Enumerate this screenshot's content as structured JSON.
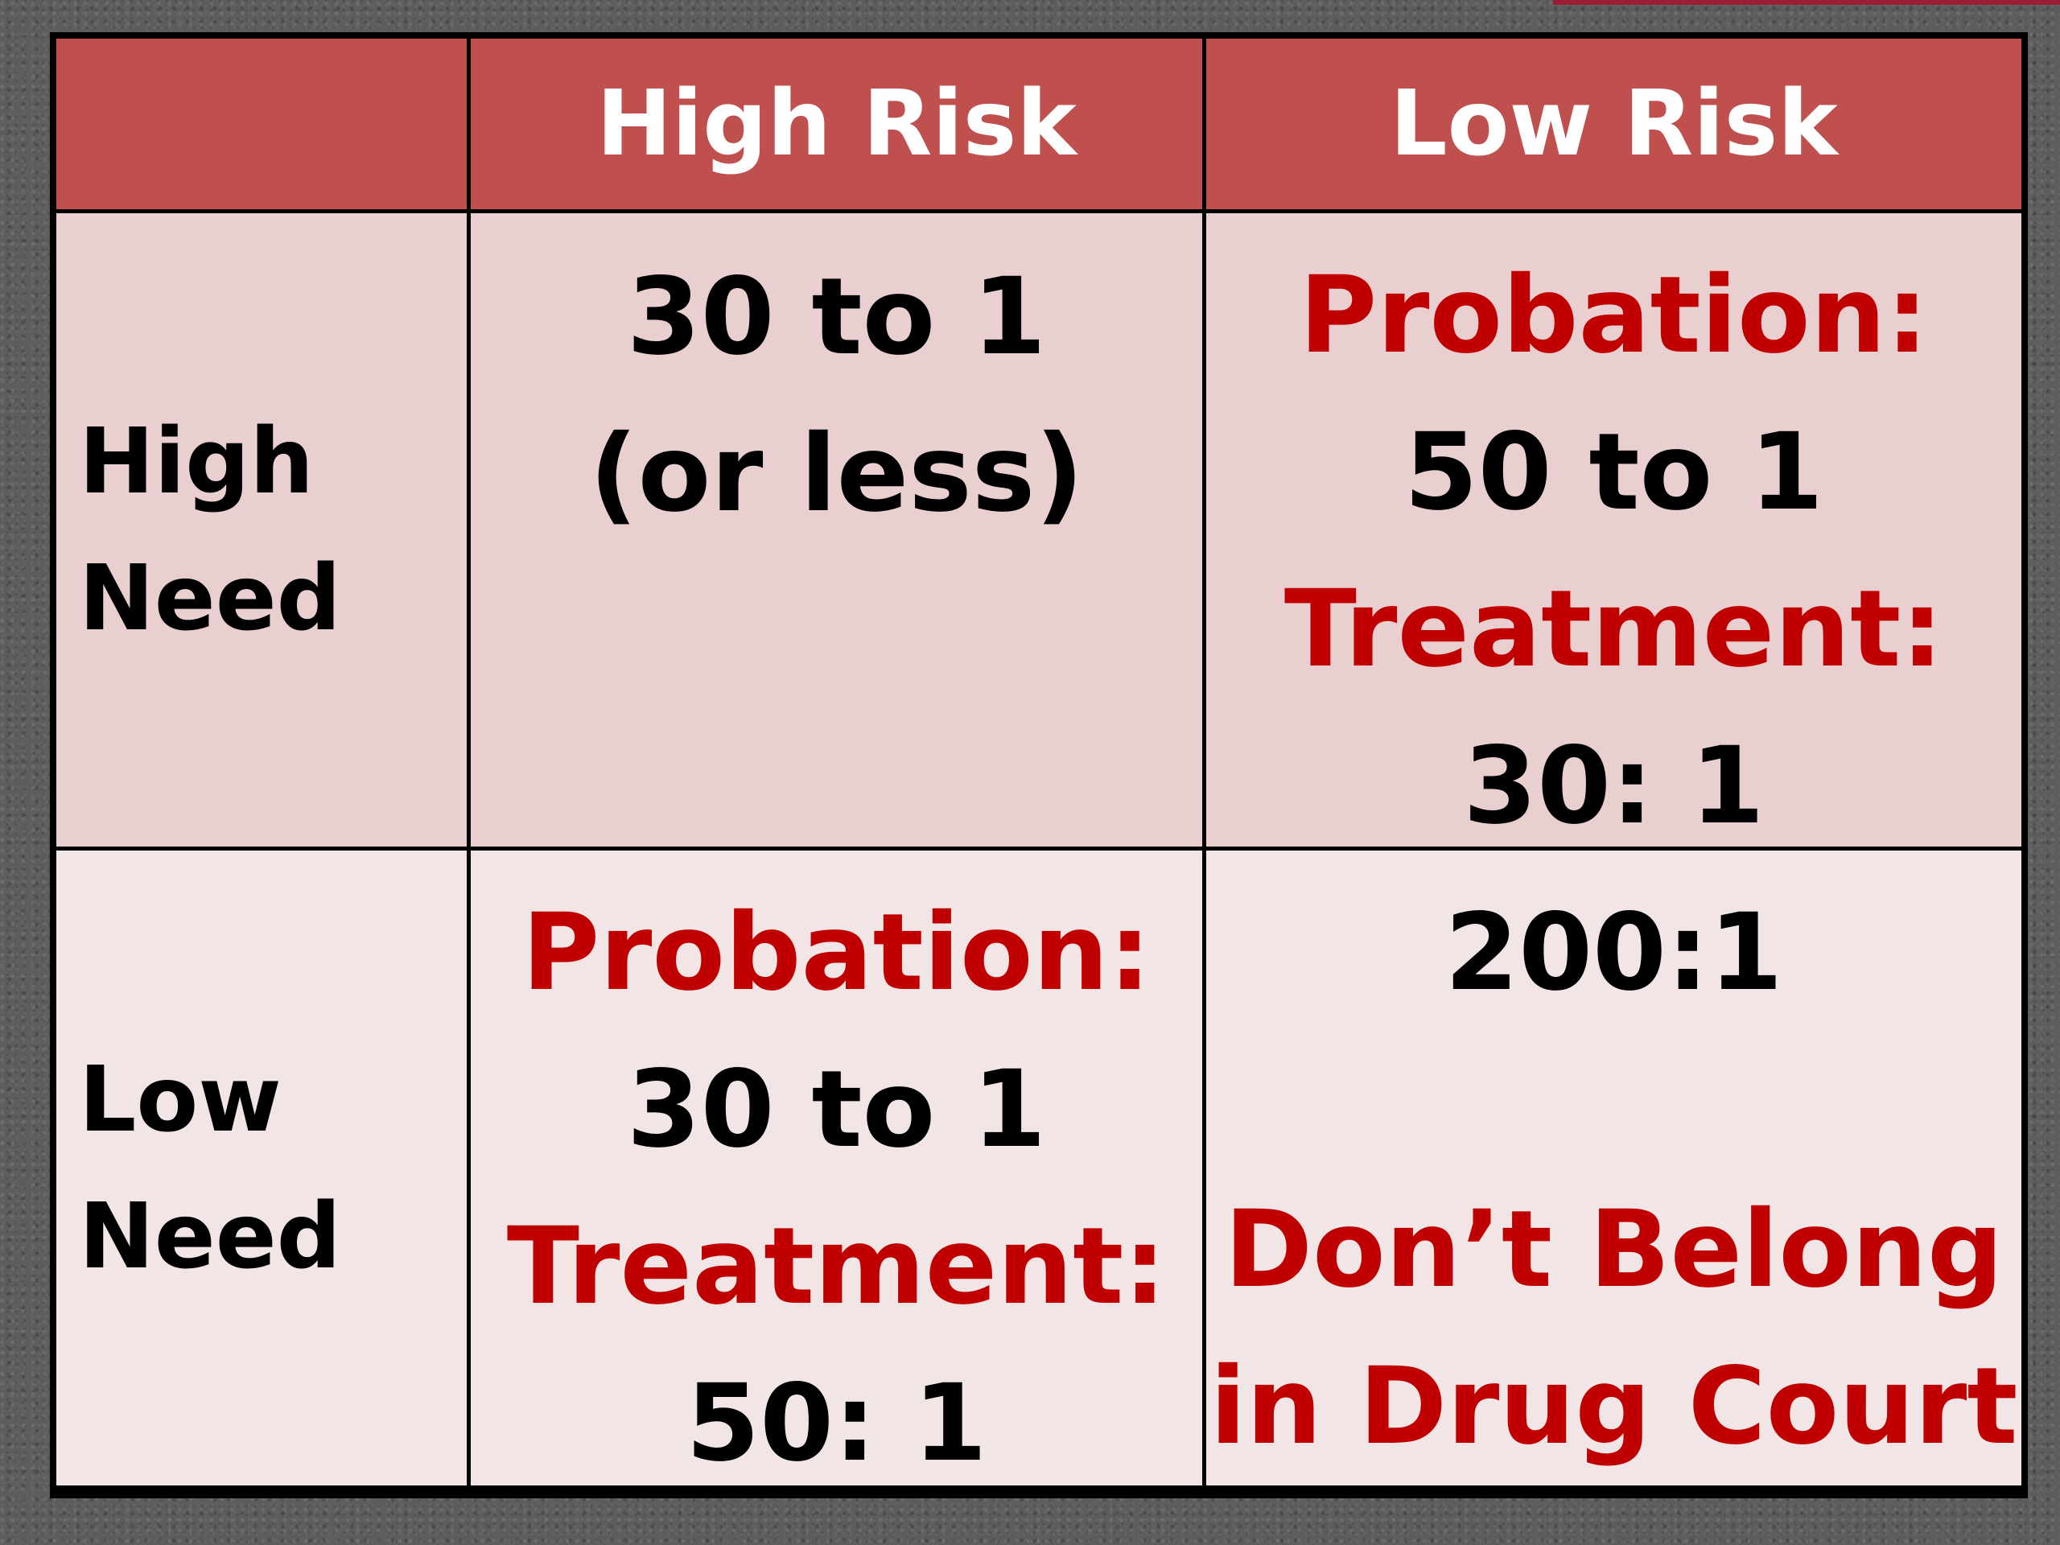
{
  "table": {
    "column_headers": [
      "",
      "High Risk",
      "Low Risk"
    ],
    "rows": [
      {
        "label_lines": [
          "High",
          "Need"
        ],
        "high_risk": {
          "lines": [
            "30 to 1",
            "(or less)"
          ]
        },
        "low_risk": {
          "probation_label": "Probation:",
          "probation_value": "50 to 1",
          "treatment_label": "Treatment:",
          "treatment_value": "30: 1"
        }
      },
      {
        "label_lines": [
          "Low",
          "Need"
        ],
        "high_risk": {
          "probation_label": "Probation:",
          "probation_value": "30 to 1",
          "treatment_label": "Treatment:",
          "treatment_value": "50: 1"
        },
        "low_risk": {
          "value": "200:1",
          "note_lines": [
            "Don’t Belong",
            "in Drug Court"
          ]
        }
      }
    ]
  },
  "colors": {
    "header_bg": "#c0504d",
    "high_need_bg": "#eacfd0",
    "low_need_bg": "#f2e5e6",
    "accent_red": "#c00000"
  }
}
